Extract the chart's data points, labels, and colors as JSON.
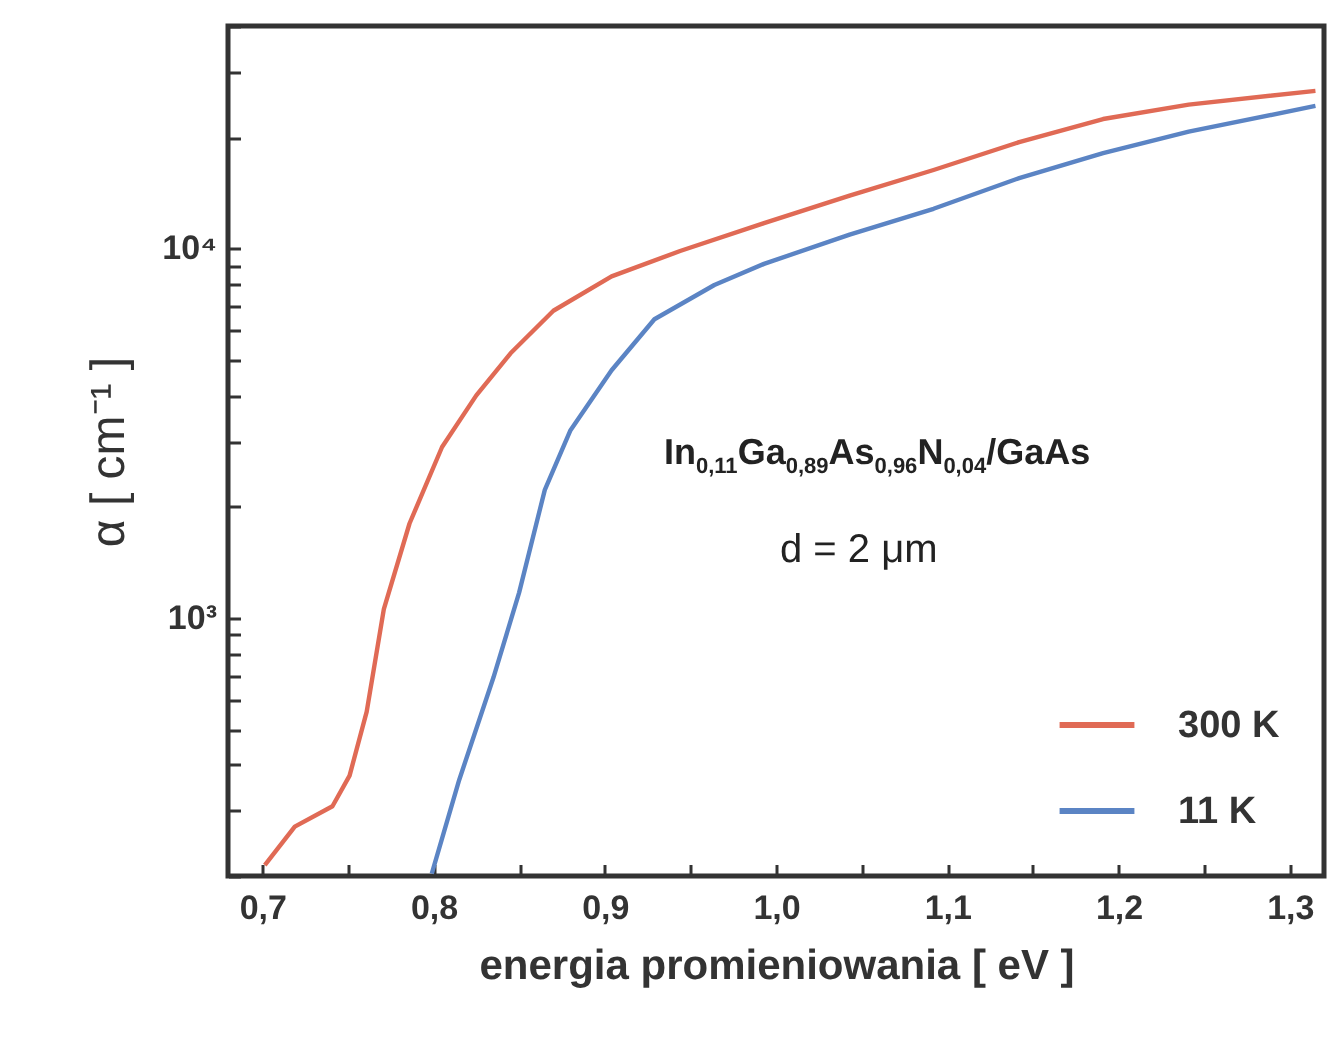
{
  "chart_data": {
    "type": "line",
    "xlabel": "energia promieniowania [ eV ]",
    "ylabel": "α [ cm⁻¹ ]",
    "log": "y",
    "xlim": [
      0.68,
      1.32
    ],
    "ylim": [
      200,
      40000
    ],
    "xticks": [
      {
        "value": 0.7,
        "label": "0,7"
      },
      {
        "value": 0.75,
        "label": null
      },
      {
        "value": 0.8,
        "label": "0,8"
      },
      {
        "value": 0.85,
        "label": null
      },
      {
        "value": 0.9,
        "label": "0,9"
      },
      {
        "value": 0.95,
        "label": null
      },
      {
        "value": 1.0,
        "label": "1,0"
      },
      {
        "value": 1.05,
        "label": null
      },
      {
        "value": 1.1,
        "label": "1,1"
      },
      {
        "value": 1.15,
        "label": null
      },
      {
        "value": 1.2,
        "label": "1,2"
      },
      {
        "value": 1.25,
        "label": null
      },
      {
        "value": 1.3,
        "label": "1,3"
      }
    ],
    "yticks": [
      {
        "value": 200,
        "label": null
      },
      {
        "value": 300,
        "label": null
      },
      {
        "value": 400,
        "label": null
      },
      {
        "value": 500,
        "label": null
      },
      {
        "value": 600,
        "label": null
      },
      {
        "value": 700,
        "label": null
      },
      {
        "value": 800,
        "label": null
      },
      {
        "value": 900,
        "label": null
      },
      {
        "value": 1000,
        "label": "10³"
      },
      {
        "value": 2000,
        "label": null
      },
      {
        "value": 3000,
        "label": null
      },
      {
        "value": 4000,
        "label": null
      },
      {
        "value": 5000,
        "label": null
      },
      {
        "value": 6000,
        "label": null
      },
      {
        "value": 7000,
        "label": null
      },
      {
        "value": 8000,
        "label": null
      },
      {
        "value": 9000,
        "label": null
      },
      {
        "value": 10000,
        "label": "10⁴"
      },
      {
        "value": 20000,
        "label": null
      },
      {
        "value": 30000,
        "label": null
      },
      {
        "value": 40000,
        "label": null
      }
    ],
    "grid": false,
    "legend": "bottom right",
    "marker": "none",
    "line_style": "solid",
    "annotations": [
      "In$_{0,11}$Ga$_{0,89}$As$_{0,96}$N$_{0,04}$/GaAs",
      "d = 2 μm"
    ],
    "series": [
      {
        "name": "300 K",
        "color": "#e06a55",
        "x": [
          0.7015,
          0.719,
          0.741,
          0.751,
          0.761,
          0.771,
          0.786,
          0.805,
          0.825,
          0.845,
          0.87,
          0.904,
          0.944,
          0.993,
          1.043,
          1.092,
          1.142,
          1.191,
          1.241,
          1.315
        ],
        "values": [
          214,
          272,
          309,
          374,
          557,
          1055,
          1800,
          2900,
          4000,
          5200,
          6780,
          8400,
          9840,
          11700,
          13900,
          16300,
          19400,
          22400,
          24500,
          26700
        ]
      },
      {
        "name": "11 K",
        "color": "#5b84c4",
        "x": [
          0.799,
          0.815,
          0.835,
          0.85,
          0.865,
          0.88,
          0.904,
          0.929,
          0.964,
          0.993,
          1.043,
          1.092,
          1.142,
          1.191,
          1.241,
          1.315
        ],
        "values": [
          203,
          364,
          689,
          1170,
          2220,
          3220,
          4680,
          6430,
          7960,
          9080,
          10900,
          12800,
          15500,
          18100,
          20700,
          24300
        ]
      }
    ]
  }
}
